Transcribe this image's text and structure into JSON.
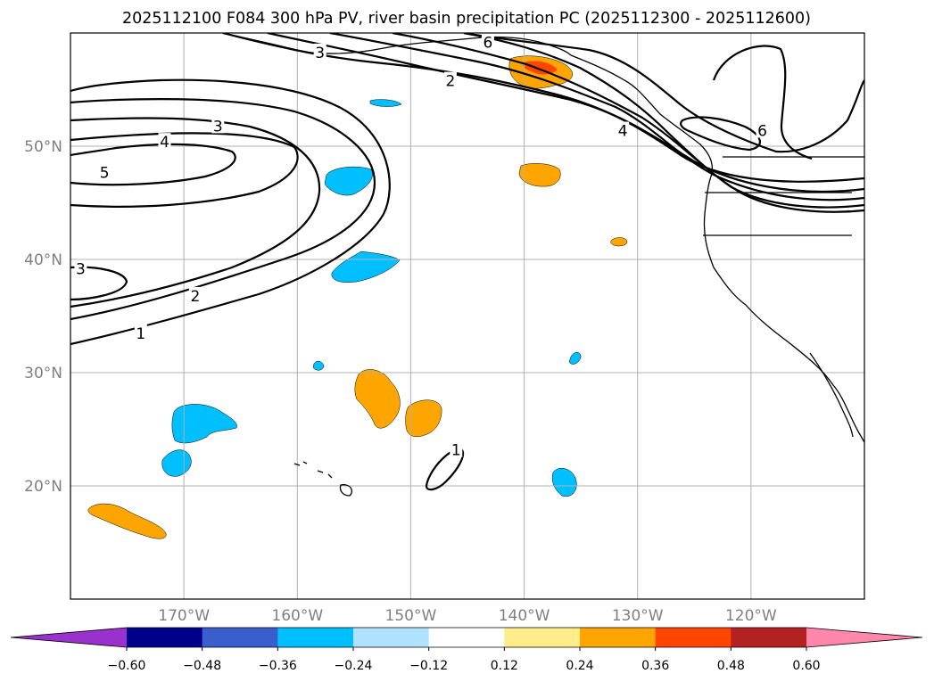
{
  "chart_data": {
    "type": "map",
    "title": "2025112100 F084 300 hPa PV, river basin precipitation PC (2025112300 - 2025112600)",
    "extent": {
      "lon": [
        -180,
        -110
      ],
      "lat": [
        10,
        60
      ]
    },
    "gridlines": true,
    "lat_ticks": [
      {
        "value": 20,
        "label": "20°N"
      },
      {
        "value": 30,
        "label": "30°N"
      },
      {
        "value": 40,
        "label": "40°N"
      },
      {
        "value": 50,
        "label": "50°N"
      }
    ],
    "lon_ticks": [
      {
        "value": -170,
        "label": "170°W"
      },
      {
        "value": -160,
        "label": "160°W"
      },
      {
        "value": -150,
        "label": "150°W"
      },
      {
        "value": -140,
        "label": "140°W"
      },
      {
        "value": -130,
        "label": "130°W"
      },
      {
        "value": -120,
        "label": "120°W"
      }
    ],
    "contour_labels": [
      {
        "text": "3",
        "lon": -158,
        "lat": 58.2
      },
      {
        "text": "6",
        "lon": -143.2,
        "lat": 59.1
      },
      {
        "text": "2",
        "lon": -146.5,
        "lat": 55.7
      },
      {
        "text": "3",
        "lon": -167,
        "lat": 51.7
      },
      {
        "text": "4",
        "lon": -171.7,
        "lat": 50.3
      },
      {
        "text": "5",
        "lon": -177,
        "lat": 47.6
      },
      {
        "text": "4",
        "lon": -131.3,
        "lat": 51.3
      },
      {
        "text": "6",
        "lon": -119,
        "lat": 51.3
      },
      {
        "text": "3",
        "lon": -179.1,
        "lat": 39.1
      },
      {
        "text": "2",
        "lon": -169,
        "lat": 36.7
      },
      {
        "text": "1",
        "lon": -173.8,
        "lat": 33.4
      },
      {
        "text": "1",
        "lon": -146,
        "lat": 23.1
      }
    ],
    "colorbar": {
      "ticks": [
        "−0.60",
        "−0.48",
        "−0.36",
        "−0.24",
        "−0.12",
        "0.12",
        "0.24",
        "0.36",
        "0.48",
        "0.60"
      ],
      "colors": [
        "#9932CC",
        "#00008B",
        "#3A5FCD",
        "#00BFFF",
        "#B0E2FF",
        "#FFFFFF",
        "#FFEC8B",
        "#FFA500",
        "#FF4500",
        "#B22222",
        "#FF88AA"
      ]
    }
  }
}
